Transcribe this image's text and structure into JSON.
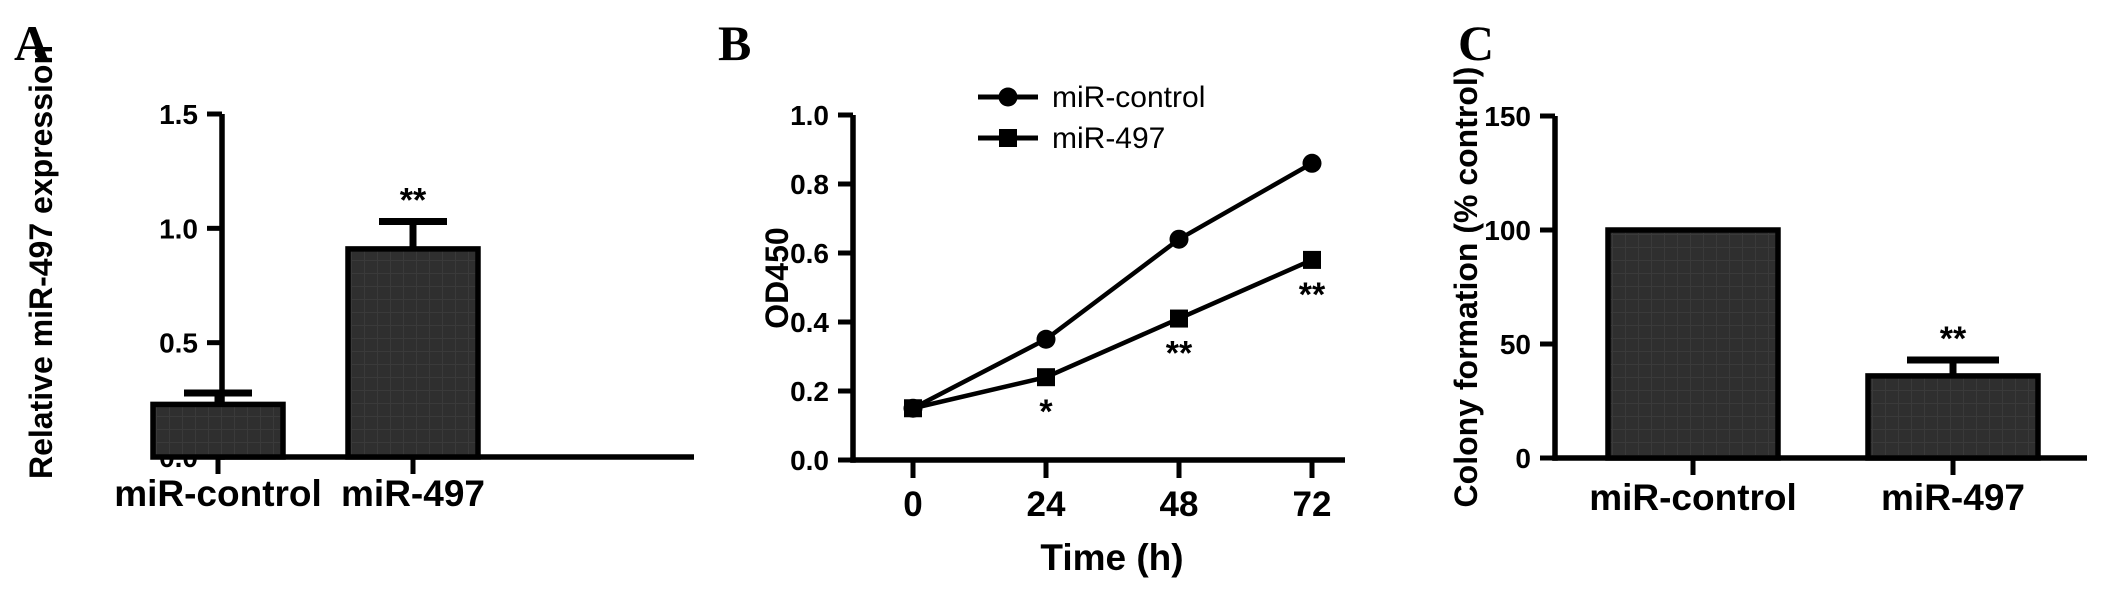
{
  "figure": {
    "background": "#ffffff",
    "ink_color": "#000000",
    "bar_fill": "#2f2f2f",
    "bar_fill_grid": "#3a3a3a"
  },
  "chart_data": [
    {
      "panel": "A",
      "type": "bar",
      "title": "",
      "ylabel": "Relative miR-497 expression",
      "categories": [
        "miR-control",
        "miR-497"
      ],
      "values": [
        0.23,
        0.91
      ],
      "errors_upper": [
        0.05,
        0.12
      ],
      "significance": [
        "",
        "**"
      ],
      "yticks": [
        0.0,
        0.5,
        1.0,
        1.5
      ],
      "ytick_labels": [
        "0.0",
        "0.5",
        "1.0",
        "1.5"
      ],
      "ylim": [
        0,
        1.5
      ],
      "grid": false,
      "legend_position": "none"
    },
    {
      "panel": "B",
      "type": "line",
      "title": "",
      "xlabel": "Time (h)",
      "ylabel": "OD450",
      "x": [
        0,
        24,
        48,
        72
      ],
      "xtick_labels": [
        "0",
        "24",
        "48",
        "72"
      ],
      "series": [
        {
          "name": "miR-control",
          "marker": "circle",
          "values": [
            0.15,
            0.35,
            0.64,
            0.86
          ],
          "annotations": [
            "",
            "",
            "",
            ""
          ]
        },
        {
          "name": "miR-497",
          "marker": "square",
          "values": [
            0.15,
            0.24,
            0.41,
            0.58
          ],
          "annotations": [
            "",
            "*",
            "**",
            "**"
          ]
        }
      ],
      "yticks": [
        0.0,
        0.2,
        0.4,
        0.6,
        0.8,
        1.0
      ],
      "ytick_labels": [
        "0.0",
        "0.2",
        "0.4",
        "0.6",
        "0.8",
        "1.0"
      ],
      "ylim": [
        0,
        1.0
      ],
      "grid": false,
      "legend_position": "top-inside"
    },
    {
      "panel": "C",
      "type": "bar",
      "title": "",
      "ylabel": "Colony formation (% control)",
      "categories": [
        "miR-control",
        "miR-497"
      ],
      "values": [
        100,
        36
      ],
      "errors_upper": [
        0,
        7
      ],
      "significance": [
        "",
        "**"
      ],
      "yticks": [
        0,
        50,
        100,
        150
      ],
      "ytick_labels": [
        "0",
        "50",
        "100",
        "150"
      ],
      "ylim": [
        0,
        150
      ],
      "grid": false,
      "legend_position": "none"
    }
  ]
}
